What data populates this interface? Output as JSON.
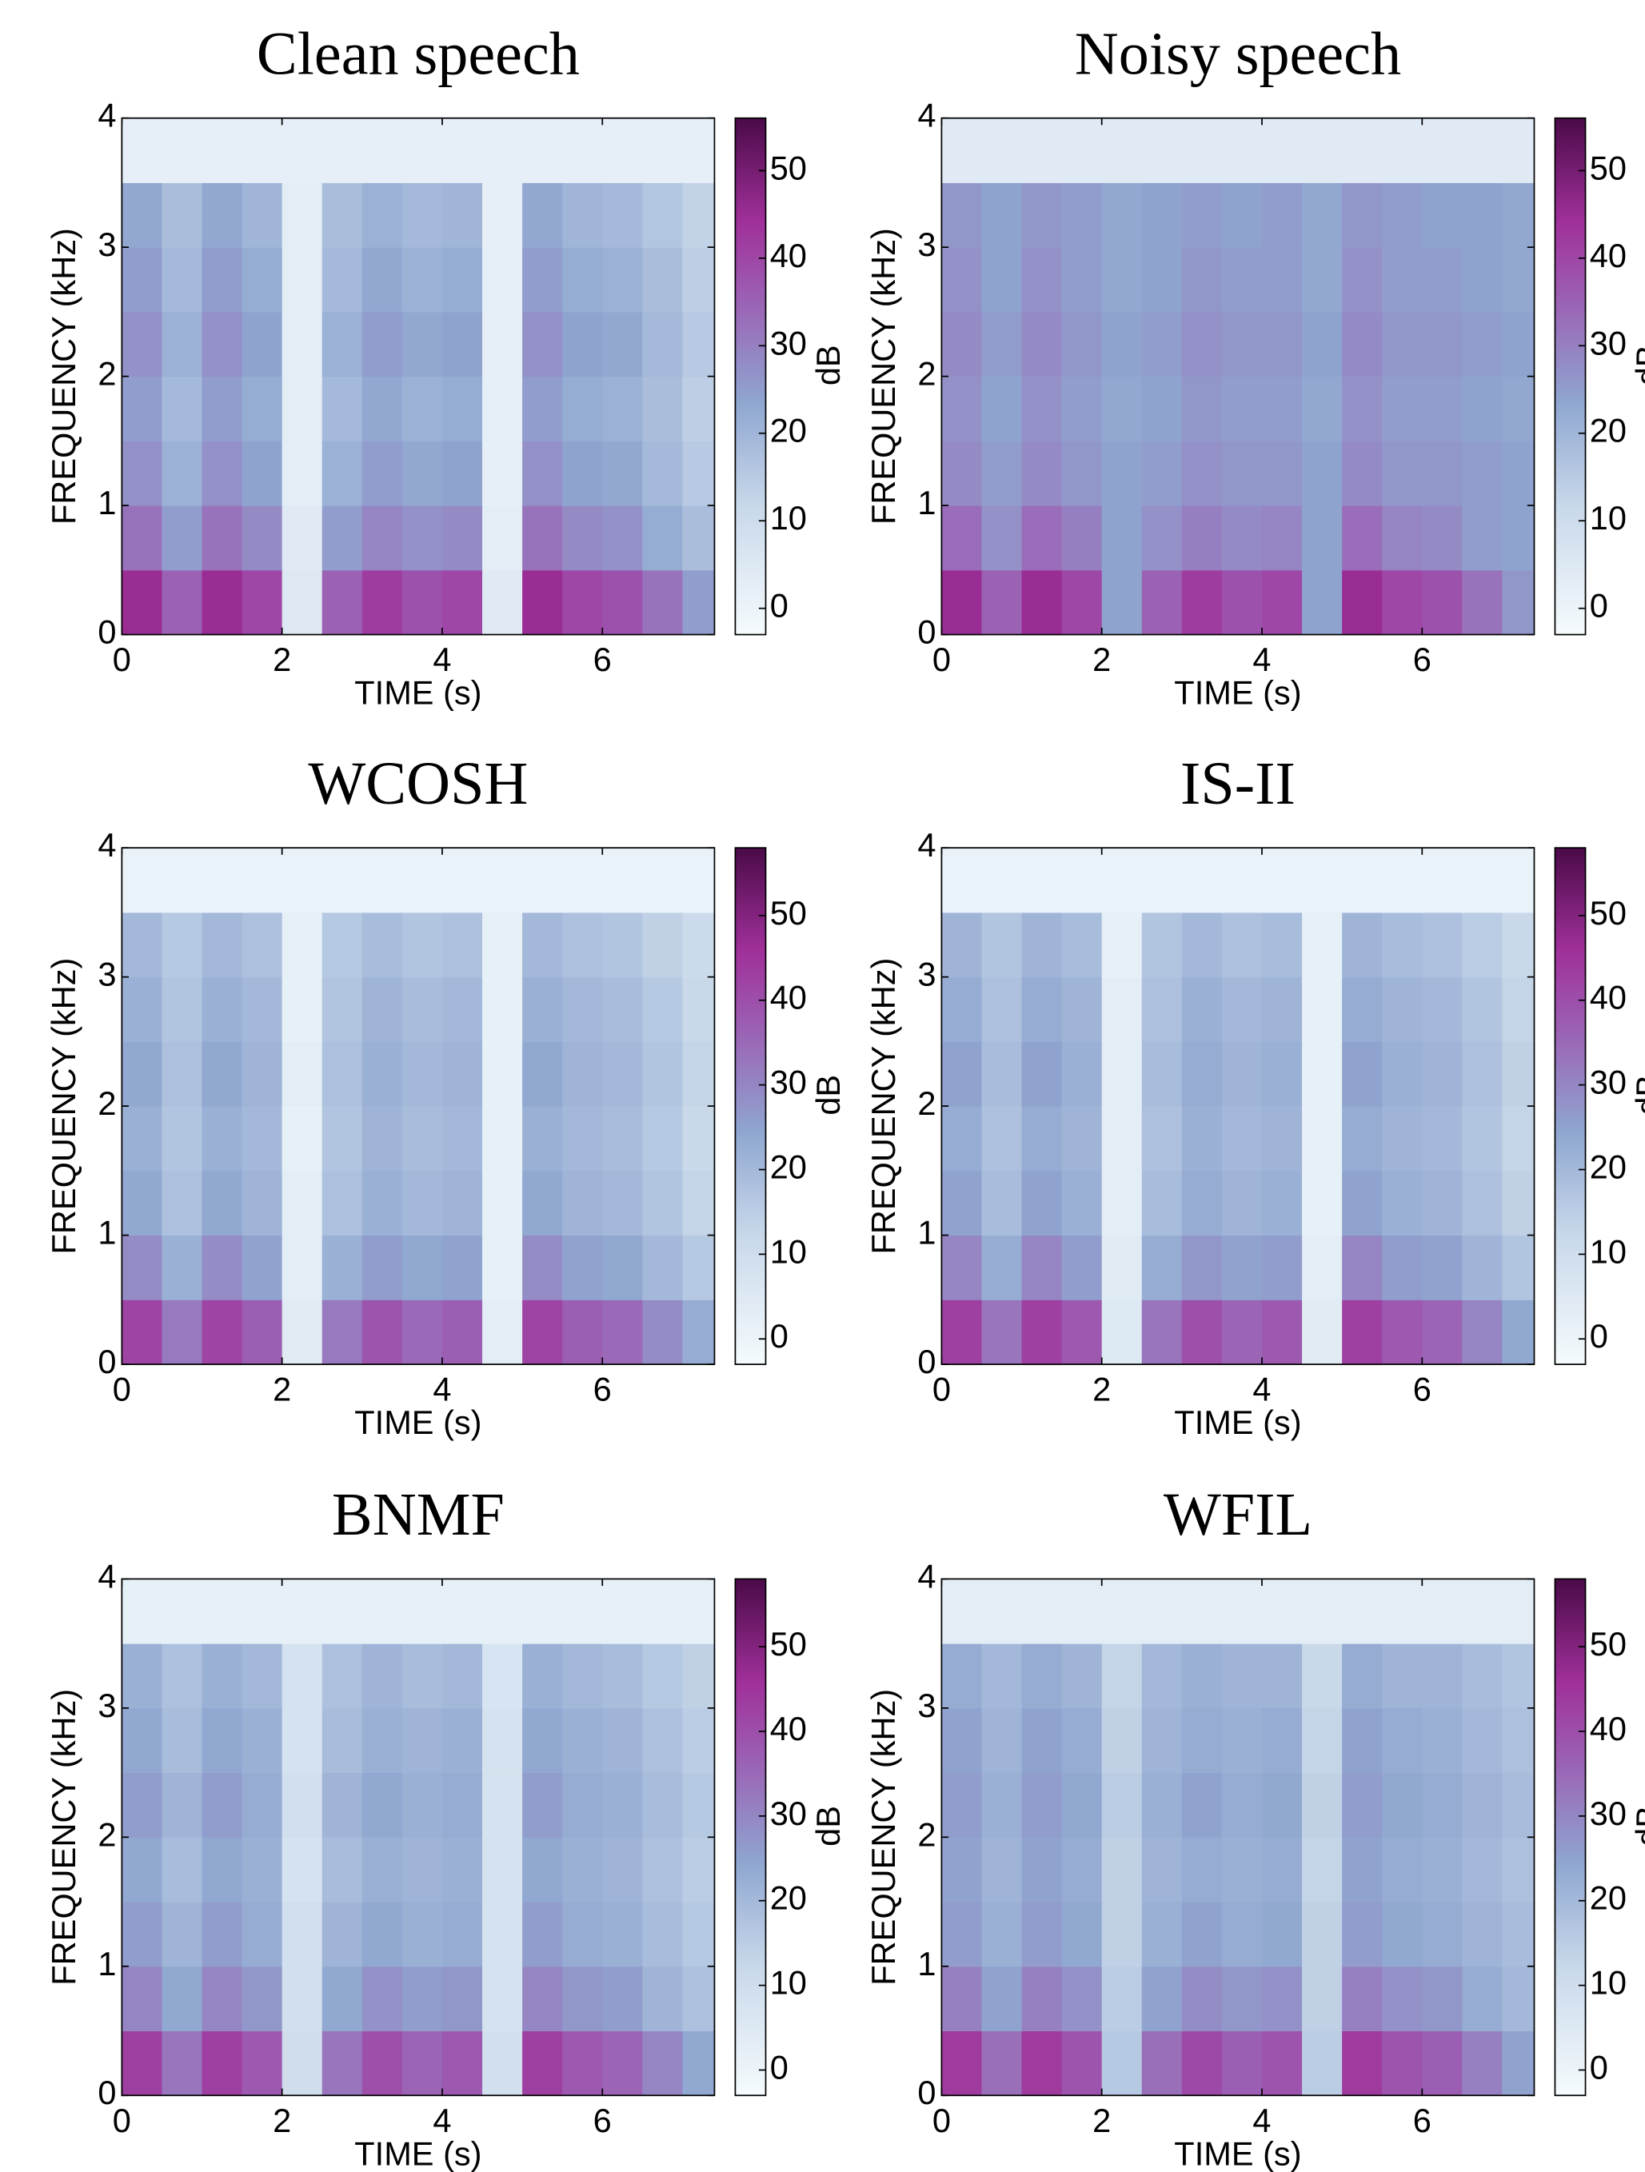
{
  "chart_data": [
    {
      "type": "heatmap",
      "title": "Clean speech",
      "x_label": "TIME (s)",
      "y_label": "FREQUENCY (kHz)",
      "colorbar_label": "dB",
      "x": [
        0,
        0.5,
        1,
        1.5,
        2,
        2.5,
        3,
        3.5,
        4,
        4.5,
        5,
        5.5,
        6,
        6.5,
        7,
        7.4
      ],
      "y": [
        0,
        0.5,
        1,
        1.5,
        2,
        2.5,
        3,
        3.5,
        4
      ],
      "z": [
        [
          45,
          35,
          45,
          40,
          5,
          35,
          42,
          38,
          40,
          4,
          45,
          40,
          38,
          32,
          25
        ],
        [
          32,
          25,
          32,
          28,
          4,
          25,
          29,
          27,
          28,
          3,
          32,
          28,
          27,
          22,
          18
        ],
        [
          27,
          21,
          27,
          24,
          3,
          21,
          25,
          23,
          24,
          2,
          27,
          24,
          23,
          19,
          15
        ],
        [
          25,
          19,
          25,
          22,
          3,
          19,
          23,
          21,
          22,
          2,
          25,
          22,
          21,
          18,
          14
        ],
        [
          27,
          21,
          27,
          24,
          3,
          21,
          25,
          23,
          24,
          2,
          27,
          24,
          23,
          19,
          15
        ],
        [
          25,
          19,
          25,
          22,
          3,
          19,
          23,
          21,
          22,
          2,
          25,
          22,
          21,
          18,
          14
        ],
        [
          23,
          18,
          23,
          20,
          3,
          18,
          21,
          19,
          20,
          2,
          23,
          20,
          19,
          16,
          13
        ],
        [
          2,
          2,
          2,
          2,
          2,
          2,
          2,
          2,
          2,
          2,
          2,
          2,
          2,
          2,
          2
        ]
      ],
      "xlim": [
        0,
        7.4
      ],
      "ylim": [
        0,
        4
      ],
      "xticks": [
        0,
        2,
        4,
        6
      ],
      "yticks": [
        0,
        1,
        2,
        3,
        4
      ],
      "clim": [
        -3,
        56
      ],
      "cticks": [
        0,
        10,
        20,
        30,
        40,
        50
      ]
    },
    {
      "type": "heatmap",
      "title": "Noisy speech",
      "x_label": "TIME (s)",
      "y_label": "FREQUENCY (kHz)",
      "colorbar_label": "dB",
      "x": [
        0,
        0.5,
        1,
        1.5,
        2,
        2.5,
        3,
        3.5,
        4,
        4.5,
        5,
        5.5,
        6,
        6.5,
        7,
        7.4
      ],
      "y": [
        0,
        0.5,
        1,
        1.5,
        2,
        2.5,
        3,
        3.5,
        4
      ],
      "z": [
        [
          45,
          35,
          45,
          40,
          24,
          35,
          42,
          38,
          40,
          24,
          45,
          40,
          38,
          32,
          26
        ],
        [
          33,
          27,
          33,
          30,
          24,
          27,
          30,
          28,
          29,
          24,
          33,
          29,
          28,
          25,
          24
        ],
        [
          28,
          25,
          28,
          26,
          24,
          25,
          27,
          26,
          26,
          24,
          28,
          26,
          26,
          25,
          24
        ],
        [
          27,
          24,
          27,
          25,
          23,
          24,
          26,
          25,
          25,
          23,
          27,
          25,
          25,
          24,
          23
        ],
        [
          28,
          25,
          28,
          26,
          24,
          25,
          27,
          26,
          26,
          24,
          28,
          26,
          26,
          25,
          24
        ],
        [
          27,
          24,
          27,
          25,
          23,
          24,
          26,
          25,
          25,
          23,
          27,
          25,
          25,
          24,
          23
        ],
        [
          26,
          24,
          26,
          25,
          23,
          24,
          25,
          24,
          25,
          23,
          26,
          25,
          24,
          24,
          23
        ],
        [
          4,
          4,
          4,
          4,
          4,
          4,
          4,
          4,
          4,
          4,
          4,
          4,
          4,
          4,
          4
        ]
      ],
      "xlim": [
        0,
        7.4
      ],
      "ylim": [
        0,
        4
      ],
      "xticks": [
        0,
        2,
        4,
        6
      ],
      "yticks": [
        0,
        1,
        2,
        3,
        4
      ],
      "clim": [
        -3,
        56
      ],
      "cticks": [
        0,
        10,
        20,
        30,
        40,
        50
      ]
    },
    {
      "type": "heatmap",
      "title": "WCOSH",
      "x_label": "TIME (s)",
      "y_label": "FREQUENCY (kHz)",
      "colorbar_label": "dB",
      "x": [
        0,
        0.5,
        1,
        1.5,
        2,
        2.5,
        3,
        3.5,
        4,
        4.5,
        5,
        5.5,
        6,
        6.5,
        7,
        7.4
      ],
      "y": [
        0,
        0.5,
        1,
        1.5,
        2,
        2.5,
        3,
        3.5,
        4
      ],
      "z": [
        [
          42,
          32,
          42,
          37,
          4,
          32,
          39,
          35,
          37,
          3,
          42,
          37,
          35,
          29,
          23
        ],
        [
          29,
          22,
          29,
          25,
          3,
          22,
          26,
          24,
          25,
          2,
          29,
          25,
          24,
          20,
          16
        ],
        [
          24,
          18,
          24,
          21,
          3,
          18,
          22,
          20,
          21,
          2,
          24,
          21,
          20,
          17,
          13
        ],
        [
          22,
          17,
          22,
          20,
          2,
          17,
          21,
          19,
          20,
          2,
          22,
          20,
          19,
          16,
          12
        ],
        [
          24,
          18,
          24,
          21,
          3,
          18,
          22,
          20,
          21,
          2,
          24,
          21,
          20,
          17,
          13
        ],
        [
          22,
          17,
          22,
          20,
          2,
          17,
          21,
          19,
          20,
          2,
          22,
          20,
          19,
          16,
          12
        ],
        [
          20,
          16,
          20,
          18,
          2,
          16,
          19,
          17,
          18,
          2,
          20,
          18,
          17,
          14,
          11
        ],
        [
          1,
          1,
          1,
          1,
          1,
          1,
          1,
          1,
          1,
          1,
          1,
          1,
          1,
          1,
          1
        ]
      ],
      "xlim": [
        0,
        7.4
      ],
      "ylim": [
        0,
        4
      ],
      "xticks": [
        0,
        2,
        4,
        6
      ],
      "yticks": [
        0,
        1,
        2,
        3,
        4
      ],
      "clim": [
        -3,
        58
      ],
      "cticks": [
        0,
        10,
        20,
        30,
        40,
        50
      ]
    },
    {
      "type": "heatmap",
      "title": "IS-II",
      "x_label": "TIME (s)",
      "y_label": "FREQUENCY (kHz)",
      "colorbar_label": "dB",
      "x": [
        0,
        0.5,
        1,
        1.5,
        2,
        2.5,
        3,
        3.5,
        4,
        4.5,
        5,
        5.5,
        6,
        6.5,
        7,
        7.4
      ],
      "y": [
        0,
        0.5,
        1,
        1.5,
        2,
        2.5,
        3,
        3.5,
        4
      ],
      "z": [
        [
          43,
          33,
          43,
          38,
          5,
          33,
          40,
          36,
          38,
          4,
          43,
          38,
          36,
          30,
          24
        ],
        [
          30,
          23,
          30,
          26,
          4,
          23,
          27,
          25,
          26,
          3,
          30,
          26,
          25,
          21,
          17
        ],
        [
          25,
          19,
          25,
          22,
          3,
          19,
          23,
          21,
          22,
          2,
          25,
          22,
          21,
          18,
          14
        ],
        [
          23,
          18,
          23,
          21,
          3,
          18,
          22,
          20,
          21,
          2,
          23,
          21,
          20,
          17,
          13
        ],
        [
          25,
          19,
          25,
          22,
          3,
          19,
          23,
          21,
          22,
          2,
          25,
          22,
          21,
          18,
          14
        ],
        [
          23,
          18,
          23,
          21,
          3,
          18,
          22,
          20,
          21,
          2,
          23,
          21,
          20,
          17,
          13
        ],
        [
          21,
          17,
          21,
          19,
          2,
          17,
          20,
          18,
          19,
          2,
          21,
          19,
          18,
          15,
          12
        ],
        [
          1,
          1,
          1,
          1,
          1,
          1,
          1,
          1,
          1,
          1,
          1,
          1,
          1,
          1,
          1
        ]
      ],
      "xlim": [
        0,
        7.4
      ],
      "ylim": [
        0,
        4
      ],
      "xticks": [
        0,
        2,
        4,
        6
      ],
      "yticks": [
        0,
        1,
        2,
        3,
        4
      ],
      "clim": [
        -3,
        58
      ],
      "cticks": [
        0,
        10,
        20,
        30,
        40,
        50
      ]
    },
    {
      "type": "heatmap",
      "title": "BNMF",
      "x_label": "TIME (s)",
      "y_label": "FREQUENCY (kHz)",
      "colorbar_label": "dB",
      "x": [
        0,
        0.5,
        1,
        1.5,
        2,
        2.5,
        3,
        3.5,
        4,
        4.5,
        5,
        5.5,
        6,
        6.5,
        7,
        7.4
      ],
      "y": [
        0,
        0.5,
        1,
        1.5,
        2,
        2.5,
        3,
        3.5,
        4
      ],
      "z": [
        [
          43,
          33,
          43,
          38,
          10,
          33,
          40,
          36,
          38,
          9,
          43,
          38,
          36,
          30,
          24
        ],
        [
          30,
          24,
          30,
          27,
          9,
          24,
          28,
          26,
          27,
          8,
          30,
          27,
          26,
          21,
          18
        ],
        [
          26,
          21,
          26,
          23,
          9,
          21,
          24,
          22,
          23,
          8,
          26,
          23,
          22,
          19,
          16
        ],
        [
          24,
          19,
          24,
          22,
          8,
          19,
          22,
          21,
          22,
          8,
          24,
          22,
          21,
          18,
          15
        ],
        [
          26,
          21,
          26,
          23,
          9,
          21,
          24,
          22,
          23,
          8,
          26,
          23,
          22,
          19,
          16
        ],
        [
          24,
          19,
          24,
          22,
          8,
          19,
          22,
          21,
          22,
          8,
          24,
          22,
          21,
          18,
          15
        ],
        [
          22,
          18,
          22,
          20,
          8,
          18,
          21,
          19,
          20,
          7,
          22,
          20,
          19,
          16,
          14
        ],
        [
          2,
          2,
          2,
          2,
          2,
          2,
          2,
          2,
          2,
          2,
          2,
          2,
          2,
          2,
          2
        ]
      ],
      "xlim": [
        0,
        7.4
      ],
      "ylim": [
        0,
        4
      ],
      "xticks": [
        0,
        2,
        4,
        6
      ],
      "yticks": [
        0,
        1,
        2,
        3,
        4
      ],
      "clim": [
        -3,
        58
      ],
      "cticks": [
        0,
        10,
        20,
        30,
        40,
        50
      ]
    },
    {
      "type": "heatmap",
      "title": "WFIL",
      "x_label": "TIME (s)",
      "y_label": "FREQUENCY (kHz)",
      "colorbar_label": "dB",
      "x": [
        0,
        0.5,
        1,
        1.5,
        2,
        2.5,
        3,
        3.5,
        4,
        4.5,
        5,
        5.5,
        6,
        6.5,
        7,
        7.4
      ],
      "y": [
        0,
        0.5,
        1,
        1.5,
        2,
        2.5,
        3,
        3.5,
        4
      ],
      "z": [
        [
          44,
          34,
          44,
          39,
          16,
          34,
          41,
          37,
          39,
          15,
          44,
          39,
          37,
          31,
          25
        ],
        [
          31,
          25,
          31,
          28,
          15,
          25,
          29,
          27,
          28,
          14,
          31,
          28,
          27,
          23,
          20
        ],
        [
          26,
          22,
          26,
          24,
          14,
          22,
          25,
          23,
          24,
          14,
          26,
          24,
          23,
          21,
          19
        ],
        [
          25,
          21,
          25,
          23,
          14,
          21,
          23,
          22,
          23,
          13,
          25,
          23,
          22,
          20,
          18
        ],
        [
          26,
          22,
          26,
          24,
          15,
          22,
          25,
          23,
          24,
          14,
          26,
          24,
          23,
          21,
          19
        ],
        [
          25,
          21,
          25,
          23,
          14,
          21,
          23,
          22,
          23,
          13,
          25,
          23,
          22,
          20,
          18
        ],
        [
          23,
          20,
          23,
          21,
          13,
          20,
          22,
          21,
          21,
          12,
          23,
          21,
          21,
          19,
          17
        ],
        [
          3,
          3,
          3,
          3,
          3,
          3,
          3,
          3,
          3,
          3,
          3,
          3,
          3,
          3,
          3
        ]
      ],
      "xlim": [
        0,
        7.4
      ],
      "ylim": [
        0,
        4
      ],
      "xticks": [
        0,
        2,
        4,
        6
      ],
      "yticks": [
        0,
        1,
        2,
        3,
        4
      ],
      "clim": [
        -3,
        58
      ],
      "cticks": [
        0,
        10,
        20,
        30,
        40,
        50
      ]
    }
  ]
}
